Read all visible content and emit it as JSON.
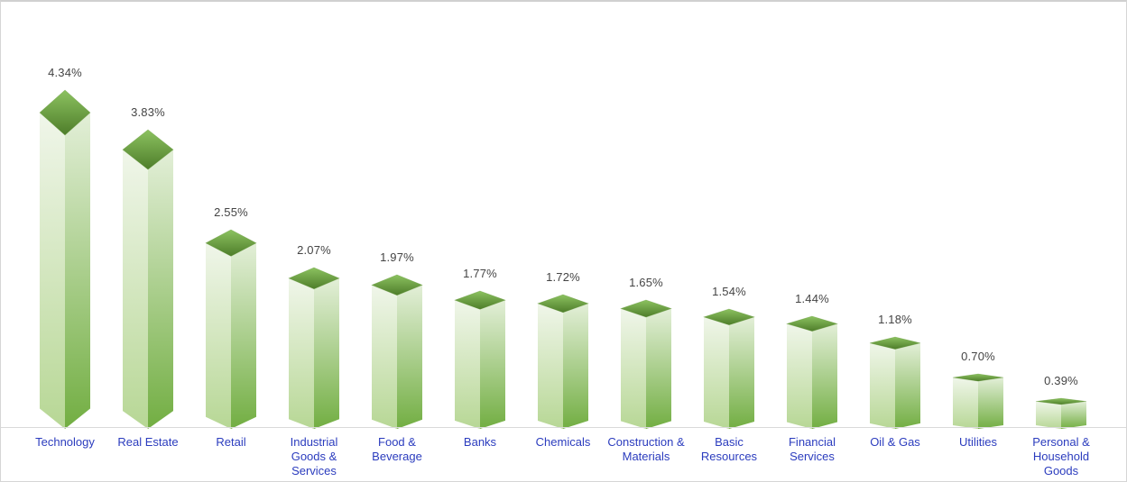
{
  "frame": {
    "background": "#ffffff",
    "border_color": "#d4d4d4",
    "baseline_color": "#d9d9d9",
    "baseline_y": 472
  },
  "chart_data": {
    "type": "bar",
    "style": "3d-column-green-gradient",
    "title": "",
    "xlabel": "",
    "ylabel": "",
    "grid": false,
    "legend": false,
    "ylim": [
      0,
      4.8
    ],
    "categories": [
      "Technology",
      "Real Estate",
      "Retail",
      "Industrial Goods & Services",
      "Food & Beverage",
      "Banks",
      "Chemicals",
      "Construction & Materials",
      "Basic Resources",
      "Financial Services",
      "Oil & Gas",
      "Utilities",
      "Personal & Household Goods"
    ],
    "category_label_lines": [
      [
        "Technology"
      ],
      [
        "Real Estate"
      ],
      [
        "Retail"
      ],
      [
        "Industrial",
        "Goods &",
        "Services"
      ],
      [
        "Food &",
        "Beverage"
      ],
      [
        "Banks"
      ],
      [
        "Chemicals"
      ],
      [
        "Construction &",
        "Materials"
      ],
      [
        "Basic",
        "Resources"
      ],
      [
        "Financial",
        "Services"
      ],
      [
        "Oil & Gas"
      ],
      [
        "Utilities"
      ],
      [
        "Personal &",
        "Household",
        "Goods"
      ]
    ],
    "values": [
      4.34,
      3.83,
      2.55,
      2.07,
      1.97,
      1.77,
      1.72,
      1.65,
      1.54,
      1.44,
      1.18,
      0.7,
      0.39
    ],
    "value_labels": [
      "4.34%",
      "3.83%",
      "2.55%",
      "2.07%",
      "1.97%",
      "1.77%",
      "1.72%",
      "1.65%",
      "1.54%",
      "1.44%",
      "1.18%",
      "0.70%",
      "0.39%"
    ],
    "value_label_color": "#444444",
    "category_label_color": "#2b3cbe",
    "bar_colors": {
      "top_gradient": [
        "#8cc260",
        "#4e7d2a"
      ],
      "top_edge": "#679a3c",
      "left_face_gradient": [
        "#f0f6ea",
        "#b7d795"
      ],
      "right_face_gradient": [
        "#e3efd8",
        "#72ae42"
      ]
    }
  }
}
